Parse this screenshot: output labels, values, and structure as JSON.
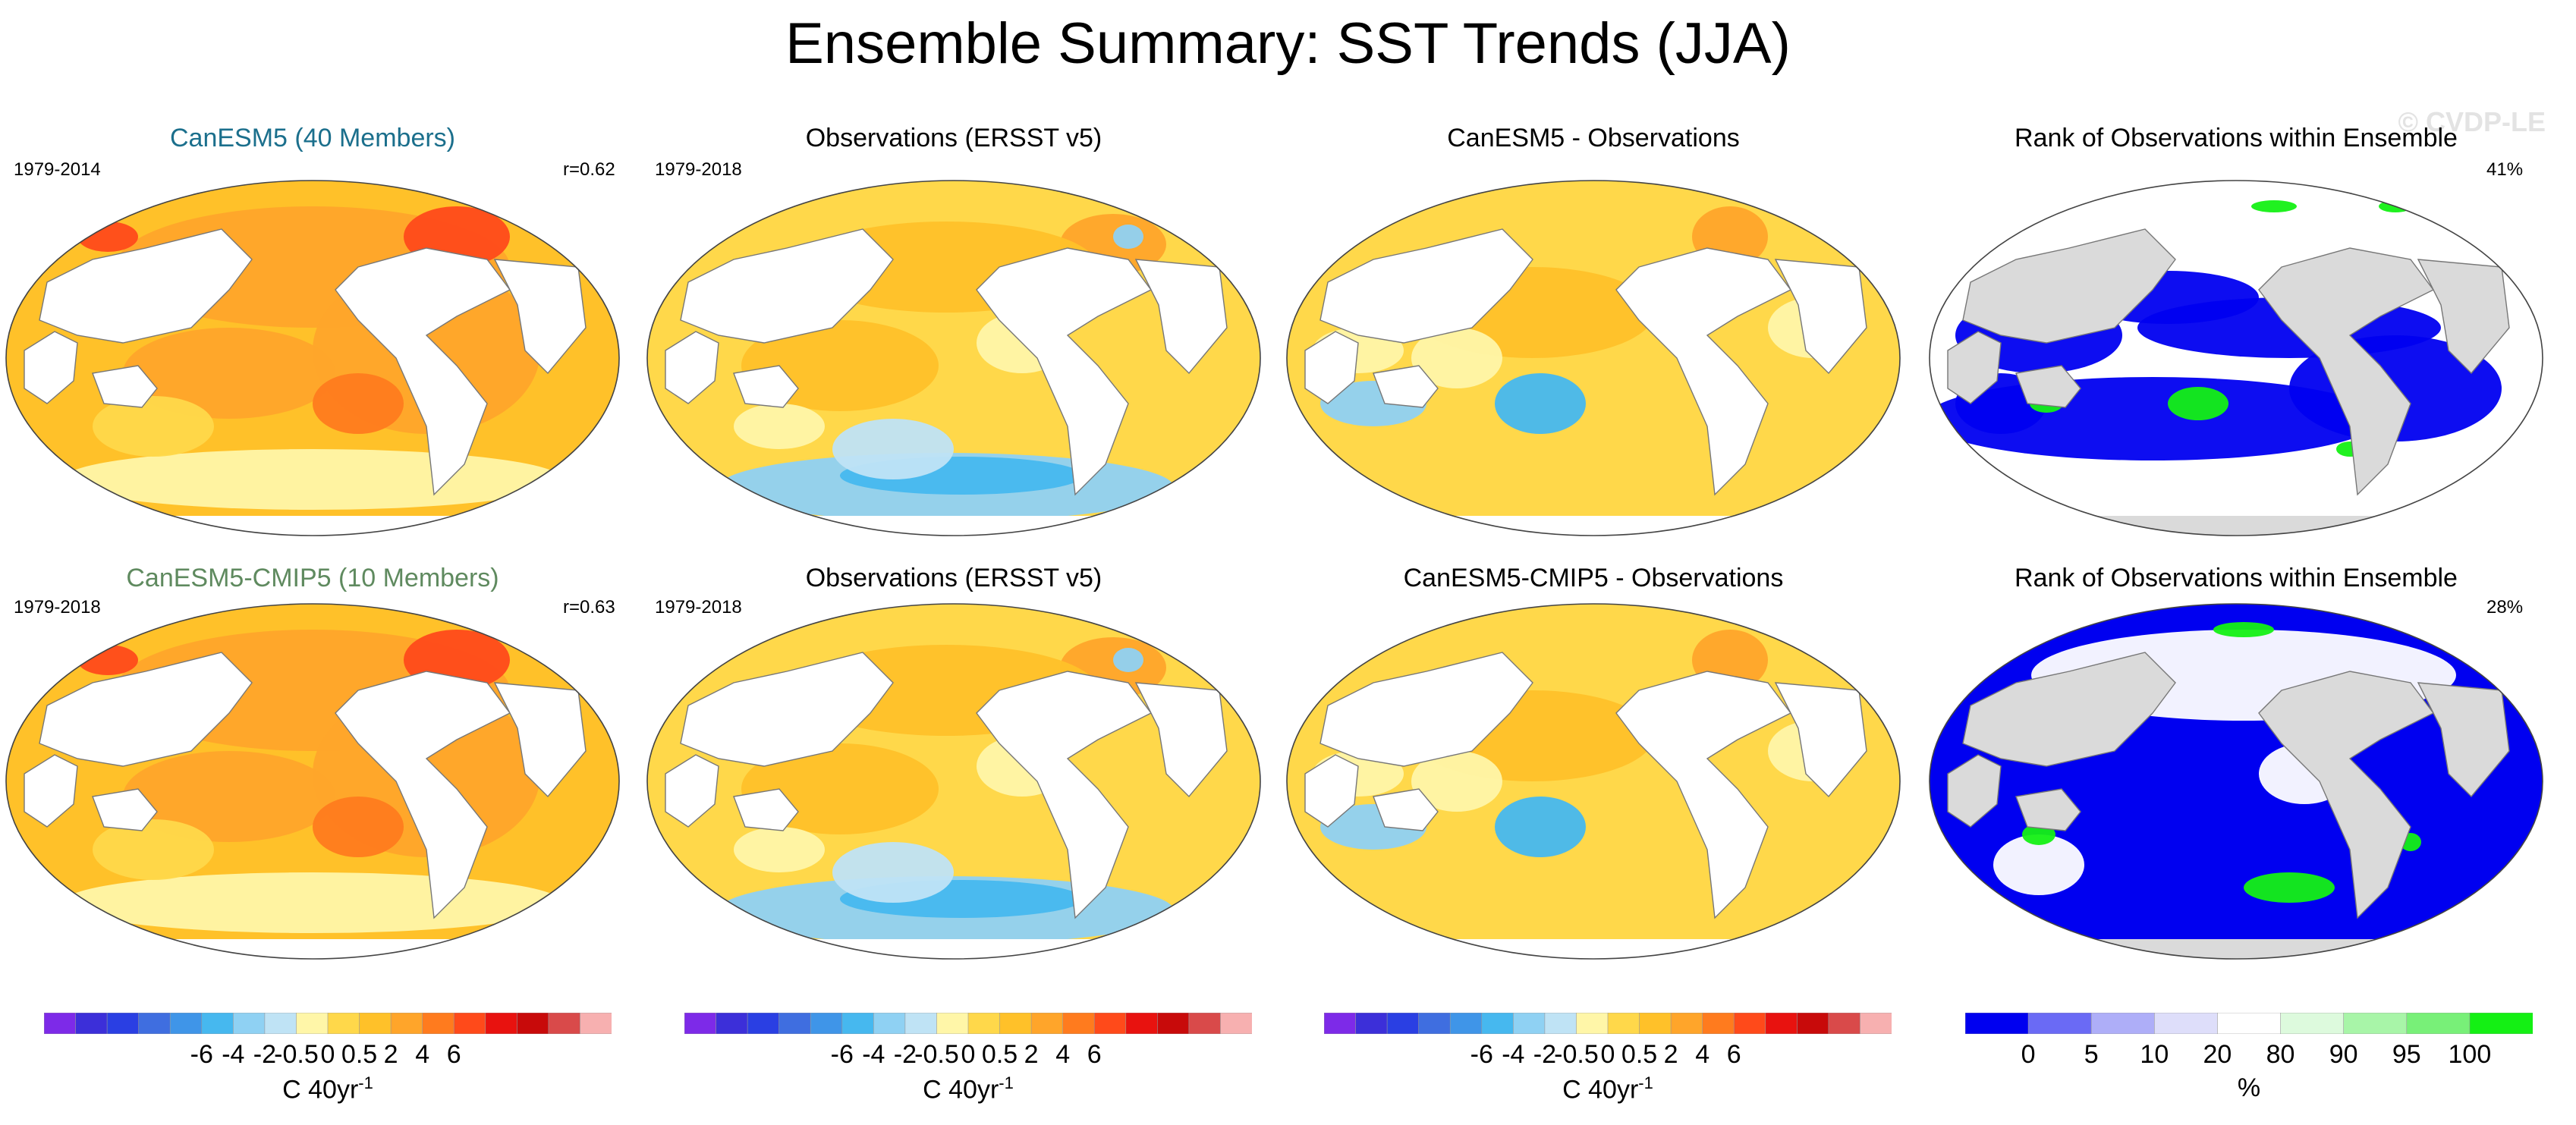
{
  "title": "Ensemble Summary: SST Trends (JJA)",
  "watermark": "© CVDP-LE",
  "colors": {
    "model_title_1": "#1b6f8c",
    "model_title_2": "#5f8a5f",
    "land": "#ffffff",
    "land_rank": "#dadada",
    "sst_scale": [
      "#7d2ae8",
      "#3c2fd9",
      "#2a3fe3",
      "#3f6ee0",
      "#3f95e8",
      "#46b8ef",
      "#8fd1f3",
      "#bfe3f5",
      "#fff6a8",
      "#ffd84a",
      "#ffc129",
      "#ffa52a",
      "#ff7b1e",
      "#ff4a1a",
      "#e8120f",
      "#c80a0a",
      "#d94a4a",
      "#f7b0b0"
    ],
    "rank_scale": [
      "#0000f0",
      "#6a6af5",
      "#aeaef8",
      "#dedefa",
      "#ffffff",
      "#ddfadd",
      "#a8f5a8",
      "#78f078",
      "#14f014"
    ]
  },
  "rows": [
    {
      "panels": [
        {
          "title": "CanESM5 (40 Members)",
          "left_label": "1979-2014",
          "right_label": "r=0.62",
          "kind": "model"
        },
        {
          "title": "Observations (ERSST v5)",
          "left_label": "1979-2018",
          "right_label": "",
          "kind": "obs"
        },
        {
          "title": "CanESM5 - Observations",
          "left_label": "",
          "right_label": "",
          "kind": "diff"
        },
        {
          "title": "Rank of Observations within Ensemble",
          "left_label": "",
          "right_label": "41%",
          "kind": "rank"
        }
      ]
    },
    {
      "panels": [
        {
          "title": "CanESM5-CMIP5 (10 Members)",
          "left_label": "1979-2018",
          "right_label": "r=0.63",
          "kind": "model"
        },
        {
          "title": "Observations (ERSST v5)",
          "left_label": "1979-2018",
          "right_label": "",
          "kind": "obs"
        },
        {
          "title": "CanESM5-CMIP5 - Observations",
          "left_label": "",
          "right_label": "",
          "kind": "diff"
        },
        {
          "title": "Rank of Observations within Ensemble",
          "left_label": "",
          "right_label": "28%",
          "kind": "rank"
        }
      ]
    }
  ],
  "colorbars": [
    {
      "ticks": [
        "-6",
        "-4",
        "-2",
        "-0.5",
        "0",
        "0.5",
        "2",
        "4",
        "6"
      ],
      "unit": "C 40yr",
      "unit_sup": "-1"
    },
    {
      "ticks": [
        "-6",
        "-4",
        "-2",
        "-0.5",
        "0",
        "0.5",
        "2",
        "4",
        "6"
      ],
      "unit": "C 40yr",
      "unit_sup": "-1"
    },
    {
      "ticks": [
        "-6",
        "-4",
        "-2",
        "-0.5",
        "0",
        "0.5",
        "2",
        "4",
        "6"
      ],
      "unit": "C 40yr",
      "unit_sup": "-1"
    },
    {
      "ticks": [
        "0",
        "5",
        "10",
        "20",
        "80",
        "90",
        "95",
        "100"
      ],
      "unit": "%",
      "unit_sup": ""
    }
  ],
  "chart_data": {
    "type": "heatmap",
    "title": "Ensemble Summary: SST Trends (JJA)",
    "variable": "SST trend",
    "season": "JJA",
    "trend_levels": [
      -6,
      -4,
      -2,
      -0.5,
      0,
      0.5,
      2,
      4,
      6
    ],
    "trend_unit": "C 40yr-1",
    "rank_levels": [
      0,
      5,
      10,
      20,
      80,
      90,
      95,
      100
    ],
    "rank_unit": "%",
    "panels": [
      {
        "title": "CanESM5 (40 Members)",
        "period": "1979-2014",
        "pattern_correlation": 0.62
      },
      {
        "title": "Observations (ERSST v5)",
        "period": "1979-2018"
      },
      {
        "title": "CanESM5 - Observations"
      },
      {
        "title": "Rank of Observations within Ensemble",
        "percent": 41
      },
      {
        "title": "CanESM5-CMIP5 (10 Members)",
        "period": "1979-2018",
        "pattern_correlation": 0.63
      },
      {
        "title": "Observations (ERSST v5)",
        "period": "1979-2018"
      },
      {
        "title": "CanESM5-CMIP5 - Observations"
      },
      {
        "title": "Rank of Observations within Ensemble",
        "percent": 28
      }
    ]
  }
}
